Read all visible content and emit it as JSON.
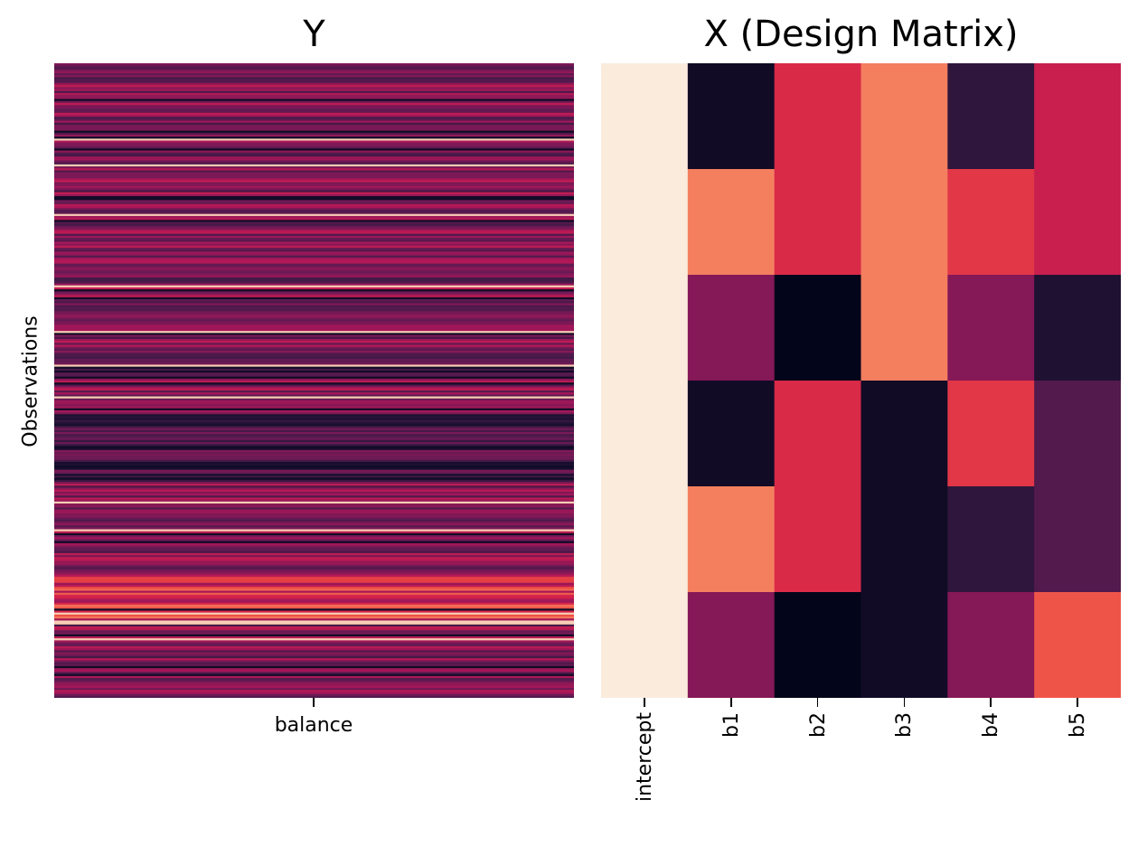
{
  "chart_data": [
    {
      "type": "heatmap",
      "title": "Y",
      "xlabel": "",
      "ylabel": "Observations",
      "columns": [
        "balance"
      ],
      "colormap": "rocket",
      "colorbar": false,
      "n_rows": 320,
      "row_seed": 7
    },
    {
      "type": "heatmap",
      "title": "X (Design Matrix)",
      "xlabel": "",
      "ylabel": "",
      "columns": [
        "intercept",
        "b1",
        "b2",
        "b3",
        "b4",
        "b5"
      ],
      "colormap": "rocket",
      "colorbar": false,
      "values": [
        [
          1.0,
          0.05,
          0.62,
          0.8,
          0.15,
          0.57
        ],
        [
          1.0,
          0.8,
          0.62,
          0.8,
          0.65,
          0.57
        ],
        [
          1.0,
          0.4,
          0.0,
          0.8,
          0.4,
          0.1
        ],
        [
          1.0,
          0.05,
          0.62,
          0.05,
          0.65,
          0.25
        ],
        [
          1.0,
          0.8,
          0.62,
          0.05,
          0.15,
          0.25
        ],
        [
          1.0,
          0.4,
          0.0,
          0.05,
          0.4,
          0.72
        ]
      ]
    }
  ]
}
